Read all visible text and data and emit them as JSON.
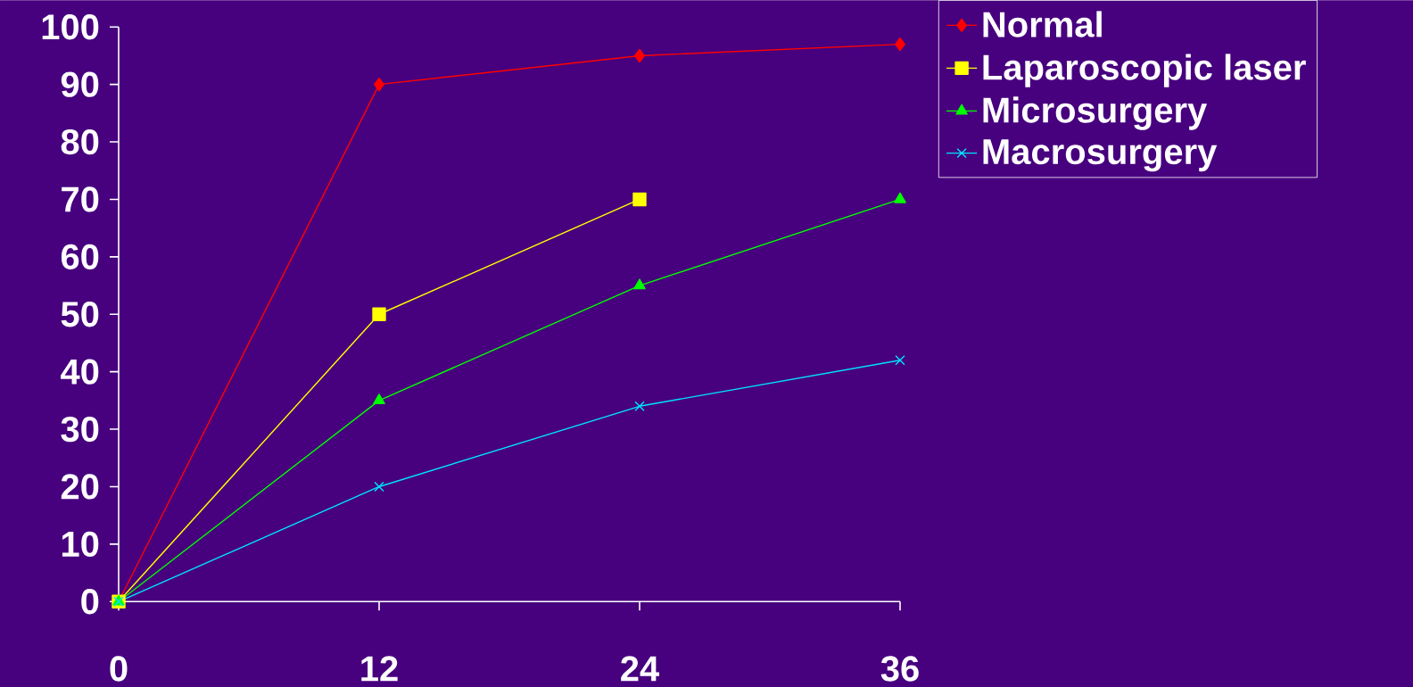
{
  "chart_data": {
    "type": "line",
    "x": [
      0,
      12,
      24,
      36
    ],
    "series": [
      {
        "name": "Normal",
        "color": "#ff0000",
        "marker": "diamond",
        "values": [
          0,
          90,
          95,
          97
        ]
      },
      {
        "name": "Laparoscopic laser",
        "color": "#ffff00",
        "marker": "square",
        "values": [
          0,
          50,
          70,
          null
        ]
      },
      {
        "name": "Microsurgery",
        "color": "#00ff00",
        "marker": "triangle",
        "values": [
          0,
          35,
          55,
          70
        ]
      },
      {
        "name": "Macrosurgery",
        "color": "#00e5ff",
        "marker": "cross",
        "values": [
          0,
          20,
          34,
          42
        ]
      }
    ],
    "xlim": [
      0,
      36
    ],
    "xticks": [
      0,
      12,
      24,
      36
    ],
    "ylim": [
      0,
      100
    ],
    "yticks": [
      0,
      10,
      20,
      30,
      40,
      50,
      60,
      70,
      80,
      90,
      100
    ],
    "grid": false,
    "legend": "top right",
    "line_style": "solid"
  }
}
